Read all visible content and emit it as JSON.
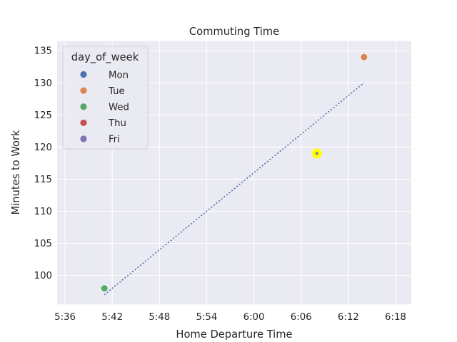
{
  "chart_data": {
    "type": "scatter",
    "title": "Commuting Time",
    "xlabel": "Home Departure Time",
    "ylabel": "Minutes to Work",
    "x_ticks": [
      "5:36",
      "5:42",
      "5:48",
      "5:54",
      "6:00",
      "6:06",
      "6:12",
      "6:18"
    ],
    "x_tick_values": [
      "5:36",
      "5:42",
      "5:48",
      "5:54",
      "6:00",
      "6:06",
      "6:12",
      "6:18"
    ],
    "xlim": [
      "5:35",
      "6:20"
    ],
    "y_ticks": [
      100,
      105,
      110,
      115,
      120,
      125,
      130,
      135
    ],
    "ylim": [
      95.5,
      136.5
    ],
    "grid": true,
    "legend": {
      "title": "day_of_week",
      "position": "top-left",
      "entries": [
        {
          "name": "Mon",
          "color": "#4c72b0"
        },
        {
          "name": "Tue",
          "color": "#dd8452"
        },
        {
          "name": "Wed",
          "color": "#55a868"
        },
        {
          "name": "Thu",
          "color": "#c44e52"
        },
        {
          "name": "Fri",
          "color": "#8172b3"
        }
      ]
    },
    "points": [
      {
        "x": "5:41",
        "y": 98,
        "day_of_week": "Wed",
        "color": "#55a868"
      },
      {
        "x": "6:08",
        "y": 119,
        "day_of_week": "Fri",
        "color": "#8172b3",
        "highlighted": true,
        "highlight_color": "#ffff00"
      },
      {
        "x": "6:14",
        "y": 134,
        "day_of_week": "Tue",
        "color": "#dd8452"
      }
    ],
    "trend_line": {
      "style": "dotted",
      "color": "#4c72b0",
      "points": [
        {
          "x": "5:41",
          "y": 97
        },
        {
          "x": "6:14",
          "y": 130
        }
      ]
    }
  }
}
